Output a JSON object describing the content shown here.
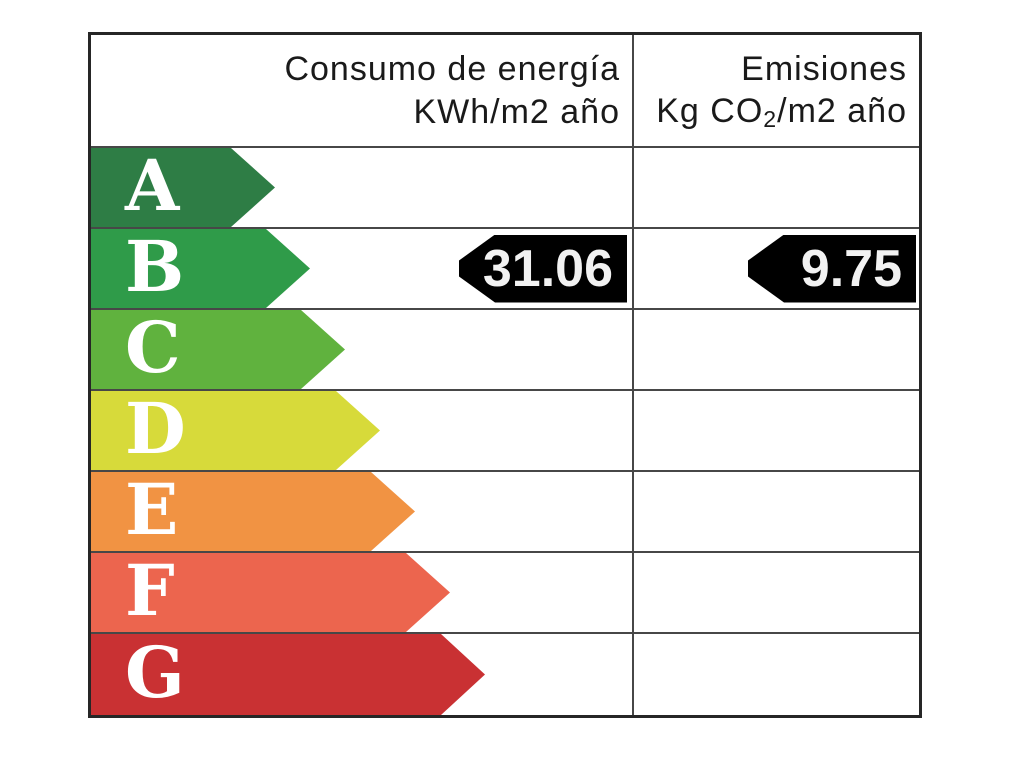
{
  "header": {
    "consumption_line1": "Consumo de energía",
    "consumption_line2": "KWh/m2 año",
    "emissions_line1": "Emisiones",
    "emissions_line2_pre": "Kg CO",
    "emissions_line2_sub": "2",
    "emissions_line2_post": "/m2 año"
  },
  "chart_data": {
    "type": "bar",
    "title": "Energy efficiency certificate rating scale",
    "columns": [
      "Consumo de energía KWh/m2 año",
      "Emisiones Kg CO2/m2 año"
    ],
    "categories": [
      "A",
      "B",
      "C",
      "D",
      "E",
      "F",
      "G"
    ],
    "ratings": [
      {
        "letter": "A",
        "color": "#2e7d45"
      },
      {
        "letter": "B",
        "color": "#2f9b49"
      },
      {
        "letter": "C",
        "color": "#60b23e"
      },
      {
        "letter": "D",
        "color": "#d7da3a"
      },
      {
        "letter": "E",
        "color": "#f19343"
      },
      {
        "letter": "F",
        "color": "#ec654e"
      },
      {
        "letter": "G",
        "color": "#c93133"
      }
    ],
    "arrow_relative_lengths": [
      184,
      219,
      254,
      289,
      324,
      359,
      394
    ],
    "selected_rating": "B",
    "consumption_value": "31.06",
    "emissions_value": "9.75",
    "marker_color": "#000000",
    "marker_text_color": "#f2f2f2",
    "grid_line_color": "#474747",
    "outer_border_color": "#262626"
  }
}
